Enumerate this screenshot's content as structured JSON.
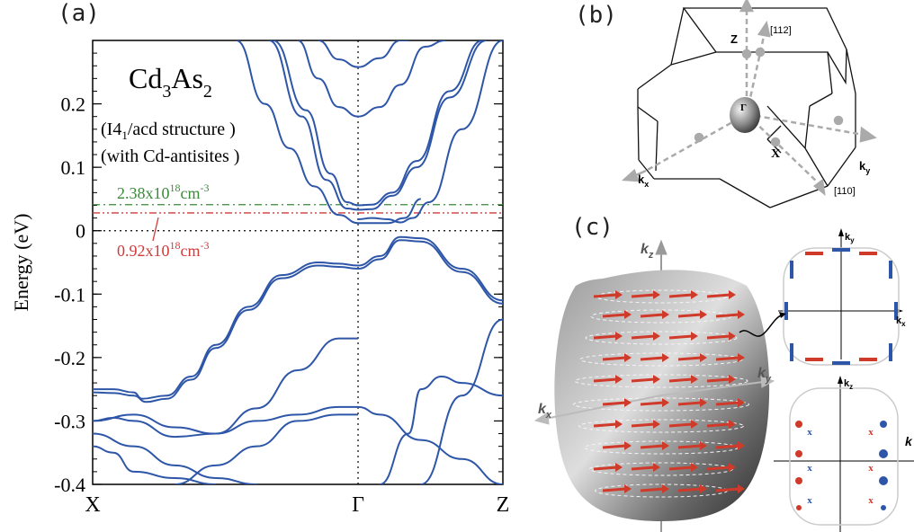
{
  "panels": {
    "a": {
      "label": "(a)",
      "material_main": "Cd",
      "material_sub1": "3",
      "material_mid": "As",
      "material_sub2": "2",
      "structure_pre": "(I4",
      "structure_sub": "1",
      "structure_post": "/acd structure )",
      "antisites": "(with Cd-antisites )",
      "ylabel": "Energy (eV)",
      "doping_green_base": "2.38x10",
      "doping_green_exp1": "18",
      "doping_green_unit": "cm",
      "doping_green_exp2": "-3",
      "doping_red_base": "0.92x10",
      "doping_red_exp1": "18",
      "doping_red_unit": "cm",
      "doping_red_exp2": "-3",
      "colors": {
        "bands": "#2e56a8",
        "green": "#3a8a3a",
        "red": "#d23a3a"
      }
    },
    "b": {
      "label": "(b)",
      "z_label": "Z",
      "gamma_label": "Γ",
      "x_label": "X",
      "kx_label": "k",
      "kx_sub": "x",
      "ky_label": "k",
      "ky_sub": "y",
      "dir_112": "[112]",
      "dir_110": "[110]"
    },
    "c": {
      "label": "(c)",
      "kz_label": "k",
      "kz_sub": "z",
      "ky_label": "k",
      "ky_sub": "y",
      "kx_label": "k",
      "kx_sub": "x",
      "inset_top_ky": "k",
      "inset_top_ky_sub": "y",
      "inset_top_kx": "k",
      "inset_top_kx_sub": "x",
      "inset_bottom_kz": "k",
      "inset_bottom_kz_sub": "z",
      "inset_bottom_k": "k",
      "cross": "x"
    }
  },
  "chart_data": {
    "type": "line",
    "title": "",
    "xlabel": "",
    "ylabel": "Energy (eV)",
    "ylim": [
      -0.4,
      0.3
    ],
    "categories": [
      "X",
      "Γ",
      "Z"
    ],
    "yticks": [
      "-0.4",
      "-0.3",
      "-0.2",
      "-0.1",
      "0",
      "0.1",
      "0.2"
    ],
    "xticks": [
      "X",
      "Γ",
      "Z"
    ],
    "horizontal_lines": [
      {
        "y": 0.0,
        "style": "dotted",
        "color": "#000000"
      },
      {
        "y": 0.041,
        "style": "dash-dot",
        "color": "#3a8a3a",
        "label": "2.38x10^18 cm^-3"
      },
      {
        "y": 0.028,
        "style": "dash-dot-dot",
        "color": "#d23a3a",
        "label": "0.92x10^18 cm^-3"
      }
    ],
    "gamma_position": 0.647,
    "series": [
      {
        "x": [
          0.44,
          0.52,
          0.58,
          0.62,
          0.647,
          0.68,
          0.73,
          0.79,
          0.87,
          0.95
        ],
        "y": [
          0.3,
          0.19,
          0.09,
          0.045,
          0.04,
          0.041,
          0.06,
          0.11,
          0.22,
          0.3
        ]
      },
      {
        "x": [
          0.43,
          0.51,
          0.57,
          0.62,
          0.647,
          0.68,
          0.73,
          0.79,
          0.87,
          0.96
        ],
        "y": [
          0.3,
          0.18,
          0.08,
          0.035,
          0.033,
          0.034,
          0.055,
          0.1,
          0.21,
          0.3
        ]
      },
      {
        "x": [
          0.5,
          0.55,
          0.6,
          0.647,
          0.7,
          0.75,
          0.81,
          0.86
        ],
        "y": [
          0.3,
          0.24,
          0.195,
          0.18,
          0.195,
          0.23,
          0.29,
          0.3
        ]
      },
      {
        "x": [
          0.55,
          0.6,
          0.647,
          0.7,
          0.75,
          0.77
        ],
        "y": [
          0.3,
          0.27,
          0.258,
          0.272,
          0.3,
          0.3
        ]
      },
      {
        "x": [
          0.35,
          0.42,
          0.48,
          0.54,
          0.6,
          0.647,
          0.68,
          0.72,
          0.76,
          0.8
        ],
        "y": [
          0.3,
          0.2,
          0.13,
          0.07,
          0.025,
          0.012,
          0.012,
          0.012,
          0.02,
          0.05
        ]
      },
      {
        "x": [
          0.647,
          0.68,
          0.72,
          0.75,
          0.78,
          0.82,
          0.9,
          1.0
        ],
        "y": [
          0.018,
          0.02,
          0.018,
          0.013,
          0.02,
          0.045,
          0.16,
          0.3
        ]
      },
      {
        "x": [
          0.0,
          0.05,
          0.1,
          0.12,
          0.18,
          0.24,
          0.3,
          0.38,
          0.46,
          0.55,
          0.6,
          0.647,
          0.7,
          0.75,
          0.8,
          0.9,
          1.0
        ],
        "y": [
          -0.25,
          -0.25,
          -0.255,
          -0.265,
          -0.26,
          -0.23,
          -0.18,
          -0.12,
          -0.07,
          -0.05,
          -0.052,
          -0.055,
          -0.04,
          -0.01,
          -0.012,
          -0.06,
          -0.11
        ]
      },
      {
        "x": [
          0.0,
          0.05,
          0.1,
          0.13,
          0.18,
          0.24,
          0.3,
          0.38,
          0.46,
          0.55,
          0.6,
          0.647,
          0.7,
          0.75,
          0.8,
          0.9,
          1.0
        ],
        "y": [
          -0.255,
          -0.256,
          -0.26,
          -0.27,
          -0.265,
          -0.235,
          -0.185,
          -0.125,
          -0.075,
          -0.055,
          -0.057,
          -0.06,
          -0.045,
          -0.015,
          -0.017,
          -0.065,
          -0.115
        ]
      },
      {
        "x": [
          0.0,
          0.1,
          0.2,
          0.3,
          0.4,
          0.5,
          0.6,
          0.647,
          0.7,
          0.8,
          0.9,
          1.0
        ],
        "y": [
          -0.3,
          -0.29,
          -0.31,
          -0.32,
          -0.3,
          -0.29,
          -0.278,
          -0.278,
          -0.29,
          -0.33,
          -0.36,
          -0.4
        ]
      },
      {
        "x": [
          0.0,
          0.05,
          0.1,
          0.2,
          0.3,
          0.4,
          0.5,
          0.6,
          0.647
        ],
        "y": [
          -0.3,
          -0.295,
          -0.3,
          -0.325,
          -0.32,
          -0.28,
          -0.22,
          -0.17,
          -0.17
        ]
      },
      {
        "x": [
          0.0,
          0.1,
          0.2,
          0.3,
          0.4
        ],
        "y": [
          -0.32,
          -0.34,
          -0.37,
          -0.39,
          -0.4
        ]
      },
      {
        "x": [
          0.0,
          0.05,
          0.1,
          0.2,
          0.3
        ],
        "y": [
          -0.34,
          -0.35,
          -0.38,
          -0.39,
          -0.4
        ]
      },
      {
        "x": [
          0.7,
          0.77,
          0.8,
          0.85,
          0.9,
          1.0
        ],
        "y": [
          -0.4,
          -0.32,
          -0.25,
          -0.23,
          -0.24,
          -0.26
        ]
      },
      {
        "x": [
          0.8,
          0.9,
          1.0
        ],
        "y": [
          -0.4,
          -0.26,
          -0.14
        ]
      },
      {
        "x": [
          0.2,
          0.3,
          0.4,
          0.5,
          0.6,
          0.647
        ],
        "y": [
          -0.4,
          -0.37,
          -0.34,
          -0.3,
          -0.29,
          -0.29
        ]
      }
    ]
  }
}
